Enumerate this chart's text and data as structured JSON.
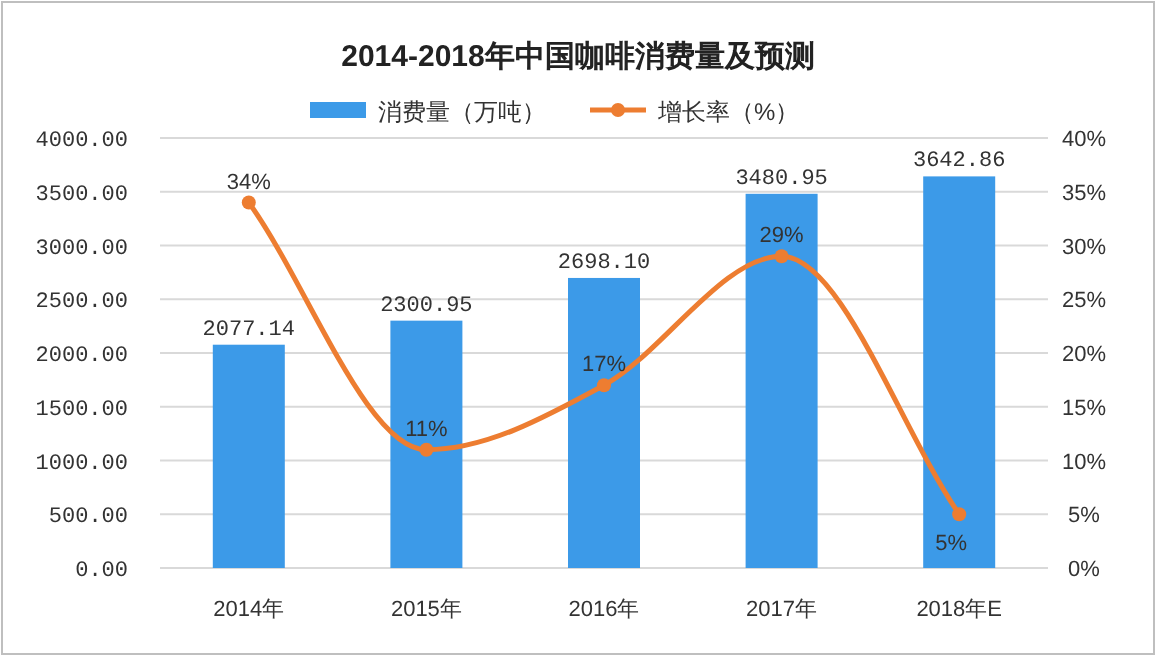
{
  "chart_data": {
    "type": "bar",
    "title": "2014-2018年中国咖啡消费量及预测",
    "categories": [
      "2014年",
      "2015年",
      "2016年",
      "2017年",
      "2018年E"
    ],
    "series": [
      {
        "name": "消费量（万吨）",
        "color": "#3c9ae8",
        "values": [
          2077.14,
          2300.95,
          2698.1,
          3480.95,
          3642.86
        ],
        "value_labels": [
          "2077.14",
          "2300.95",
          "2698.10",
          "3480.95",
          "3642.86"
        ]
      },
      {
        "name": "增长率（%）",
        "type": "line",
        "axis": "y2",
        "color": "#ed7d31",
        "marker": "circle",
        "values": [
          34,
          11,
          17,
          29,
          5
        ],
        "value_labels": [
          "34%",
          "11%",
          "17%",
          "29%",
          "5%"
        ]
      }
    ],
    "ylim": [
      0,
      4000
    ],
    "yticks": [
      {
        "value": 0,
        "label": "0.00"
      },
      {
        "value": 500,
        "label": "500.00"
      },
      {
        "value": 1000,
        "label": "1000.00"
      },
      {
        "value": 1500,
        "label": "1500.00"
      },
      {
        "value": 2000,
        "label": "2000.00"
      },
      {
        "value": 2500,
        "label": "2500.00"
      },
      {
        "value": 3000,
        "label": "3000.00"
      },
      {
        "value": 3500,
        "label": "3500.00"
      },
      {
        "value": 4000,
        "label": "4000.00"
      }
    ],
    "y2lim": [
      0,
      40
    ],
    "y2ticks": [
      {
        "value": 0,
        "label": "0%"
      },
      {
        "value": 5,
        "label": "5%"
      },
      {
        "value": 10,
        "label": "10%"
      },
      {
        "value": 15,
        "label": "15%"
      },
      {
        "value": 20,
        "label": "20%"
      },
      {
        "value": 25,
        "label": "25%"
      },
      {
        "value": 30,
        "label": "30%"
      },
      {
        "value": 35,
        "label": "35%"
      },
      {
        "value": 40,
        "label": "40%"
      }
    ],
    "grid": "y",
    "legend": "top"
  }
}
